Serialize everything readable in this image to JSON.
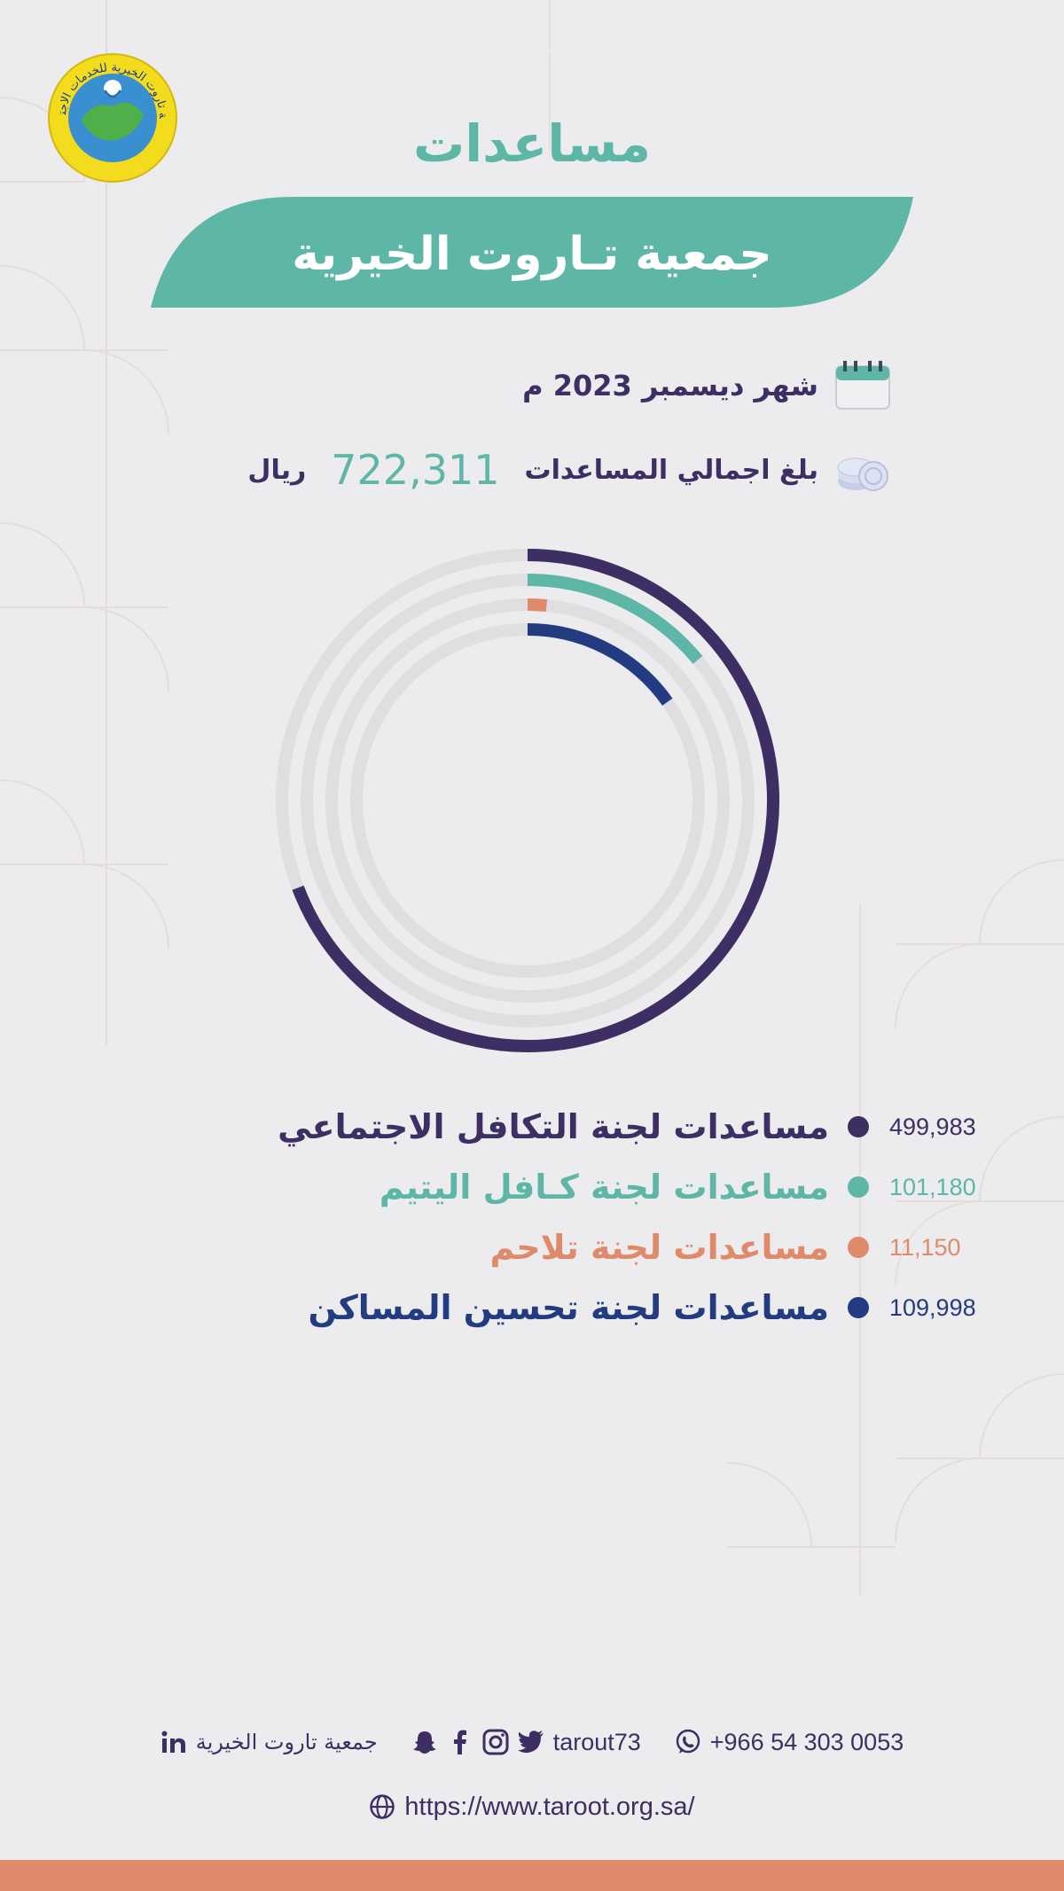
{
  "logo": {
    "name": "logo-emblem",
    "ring_text": "جمعية تاروت الخيرية للخدمات الاجتماعية"
  },
  "header": {
    "title": "مساعدات",
    "banner_title": "جمعية تـاروت الخيرية"
  },
  "info": {
    "month_text": "شهر ديسمبر 2023 م",
    "total_label": "بلغ اجمالي المساعدات",
    "total_value": "722,311",
    "total_unit": "ريال",
    "calendar_icon": "calendar-icon",
    "coins_icon": "coins-icon"
  },
  "colors": {
    "purple": "#3d2e64",
    "teal": "#5db6a6",
    "orange": "#df8a6a",
    "navy": "#233b80",
    "track": "#dfdfe2",
    "background": "#ececee"
  },
  "chart_data": {
    "type": "radial-bar",
    "total": 722311,
    "series": [
      {
        "name": "مساعدات لجنة التكافل الاجتماعي",
        "value": 499983,
        "display": "499,983",
        "color": "#3d2e64"
      },
      {
        "name": "مساعدات لجنة كـافل اليتيم",
        "value": 101180,
        "display": "101,180",
        "color": "#5db6a6"
      },
      {
        "name": "مساعدات لجنة تلاحم",
        "value": 11150,
        "display": "11,150",
        "color": "#df8a6a"
      },
      {
        "name": "مساعدات لجنة تحسين المساكن",
        "value": 109998,
        "display": "109,998",
        "color": "#233b80"
      }
    ]
  },
  "footer": {
    "phone": "+966 54 303 0053",
    "handle": "tarout73",
    "org_name": "جمعية تاروت الخيرية",
    "website": "https://www.taroot.org.sa/",
    "icons": [
      "whatsapp-icon",
      "twitter-icon",
      "instagram-icon",
      "facebook-icon",
      "snapchat-icon",
      "linkedin-icon",
      "globe-icon"
    ]
  }
}
